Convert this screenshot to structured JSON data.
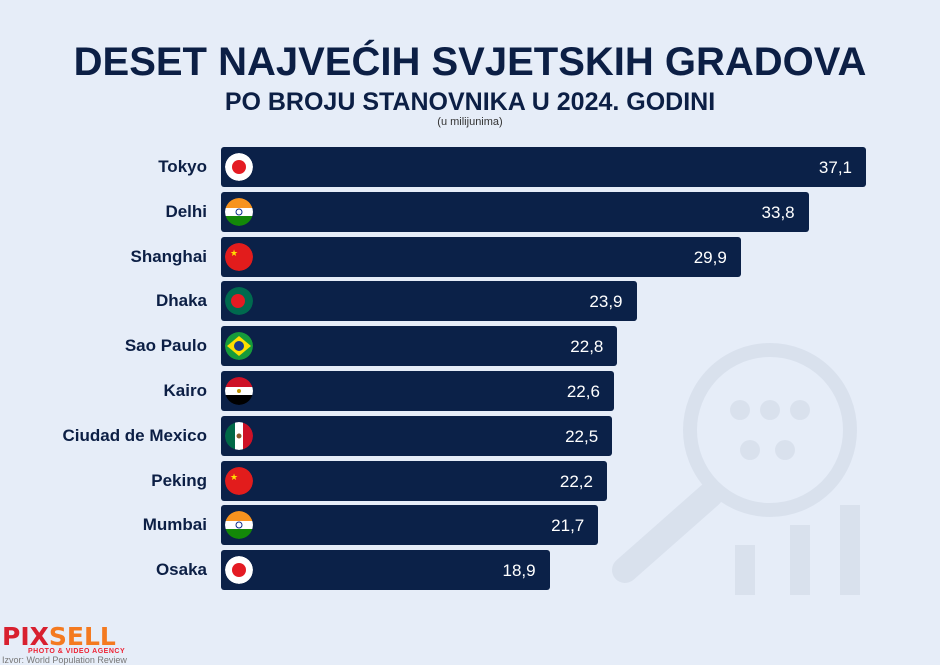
{
  "chart_data": {
    "type": "bar",
    "title": "DESET NAJVEĆIH SVJETSKIH GRADOVA",
    "subtitle": "PO BROJU STANOVNIKA U 2024. GODINI",
    "unit": "(u milijunima)",
    "categories": [
      "Tokyo",
      "Delhi",
      "Shanghai",
      "Dhaka",
      "Sao Paulo",
      "Kairo",
      "Ciudad de Mexico",
      "Peking",
      "Mumbai",
      "Osaka"
    ],
    "values": [
      37.1,
      33.8,
      29.9,
      23.9,
      22.8,
      22.6,
      22.5,
      22.2,
      21.7,
      18.9
    ],
    "value_labels": [
      "37,1",
      "33,8",
      "29,9",
      "23,9",
      "22,8",
      "22,6",
      "22,5",
      "22,2",
      "21,7",
      "18,9"
    ],
    "flags": [
      "japan",
      "india",
      "china",
      "bangladesh",
      "brazil",
      "egypt",
      "mexico",
      "china",
      "india",
      "japan"
    ],
    "bar_color": "#0b2148"
  },
  "footer": {
    "logo_a": "PIX",
    "logo_b": "SELL",
    "agency": "PHOTO & VIDEO AGENCY",
    "source": "Izvor: World Population Review"
  }
}
